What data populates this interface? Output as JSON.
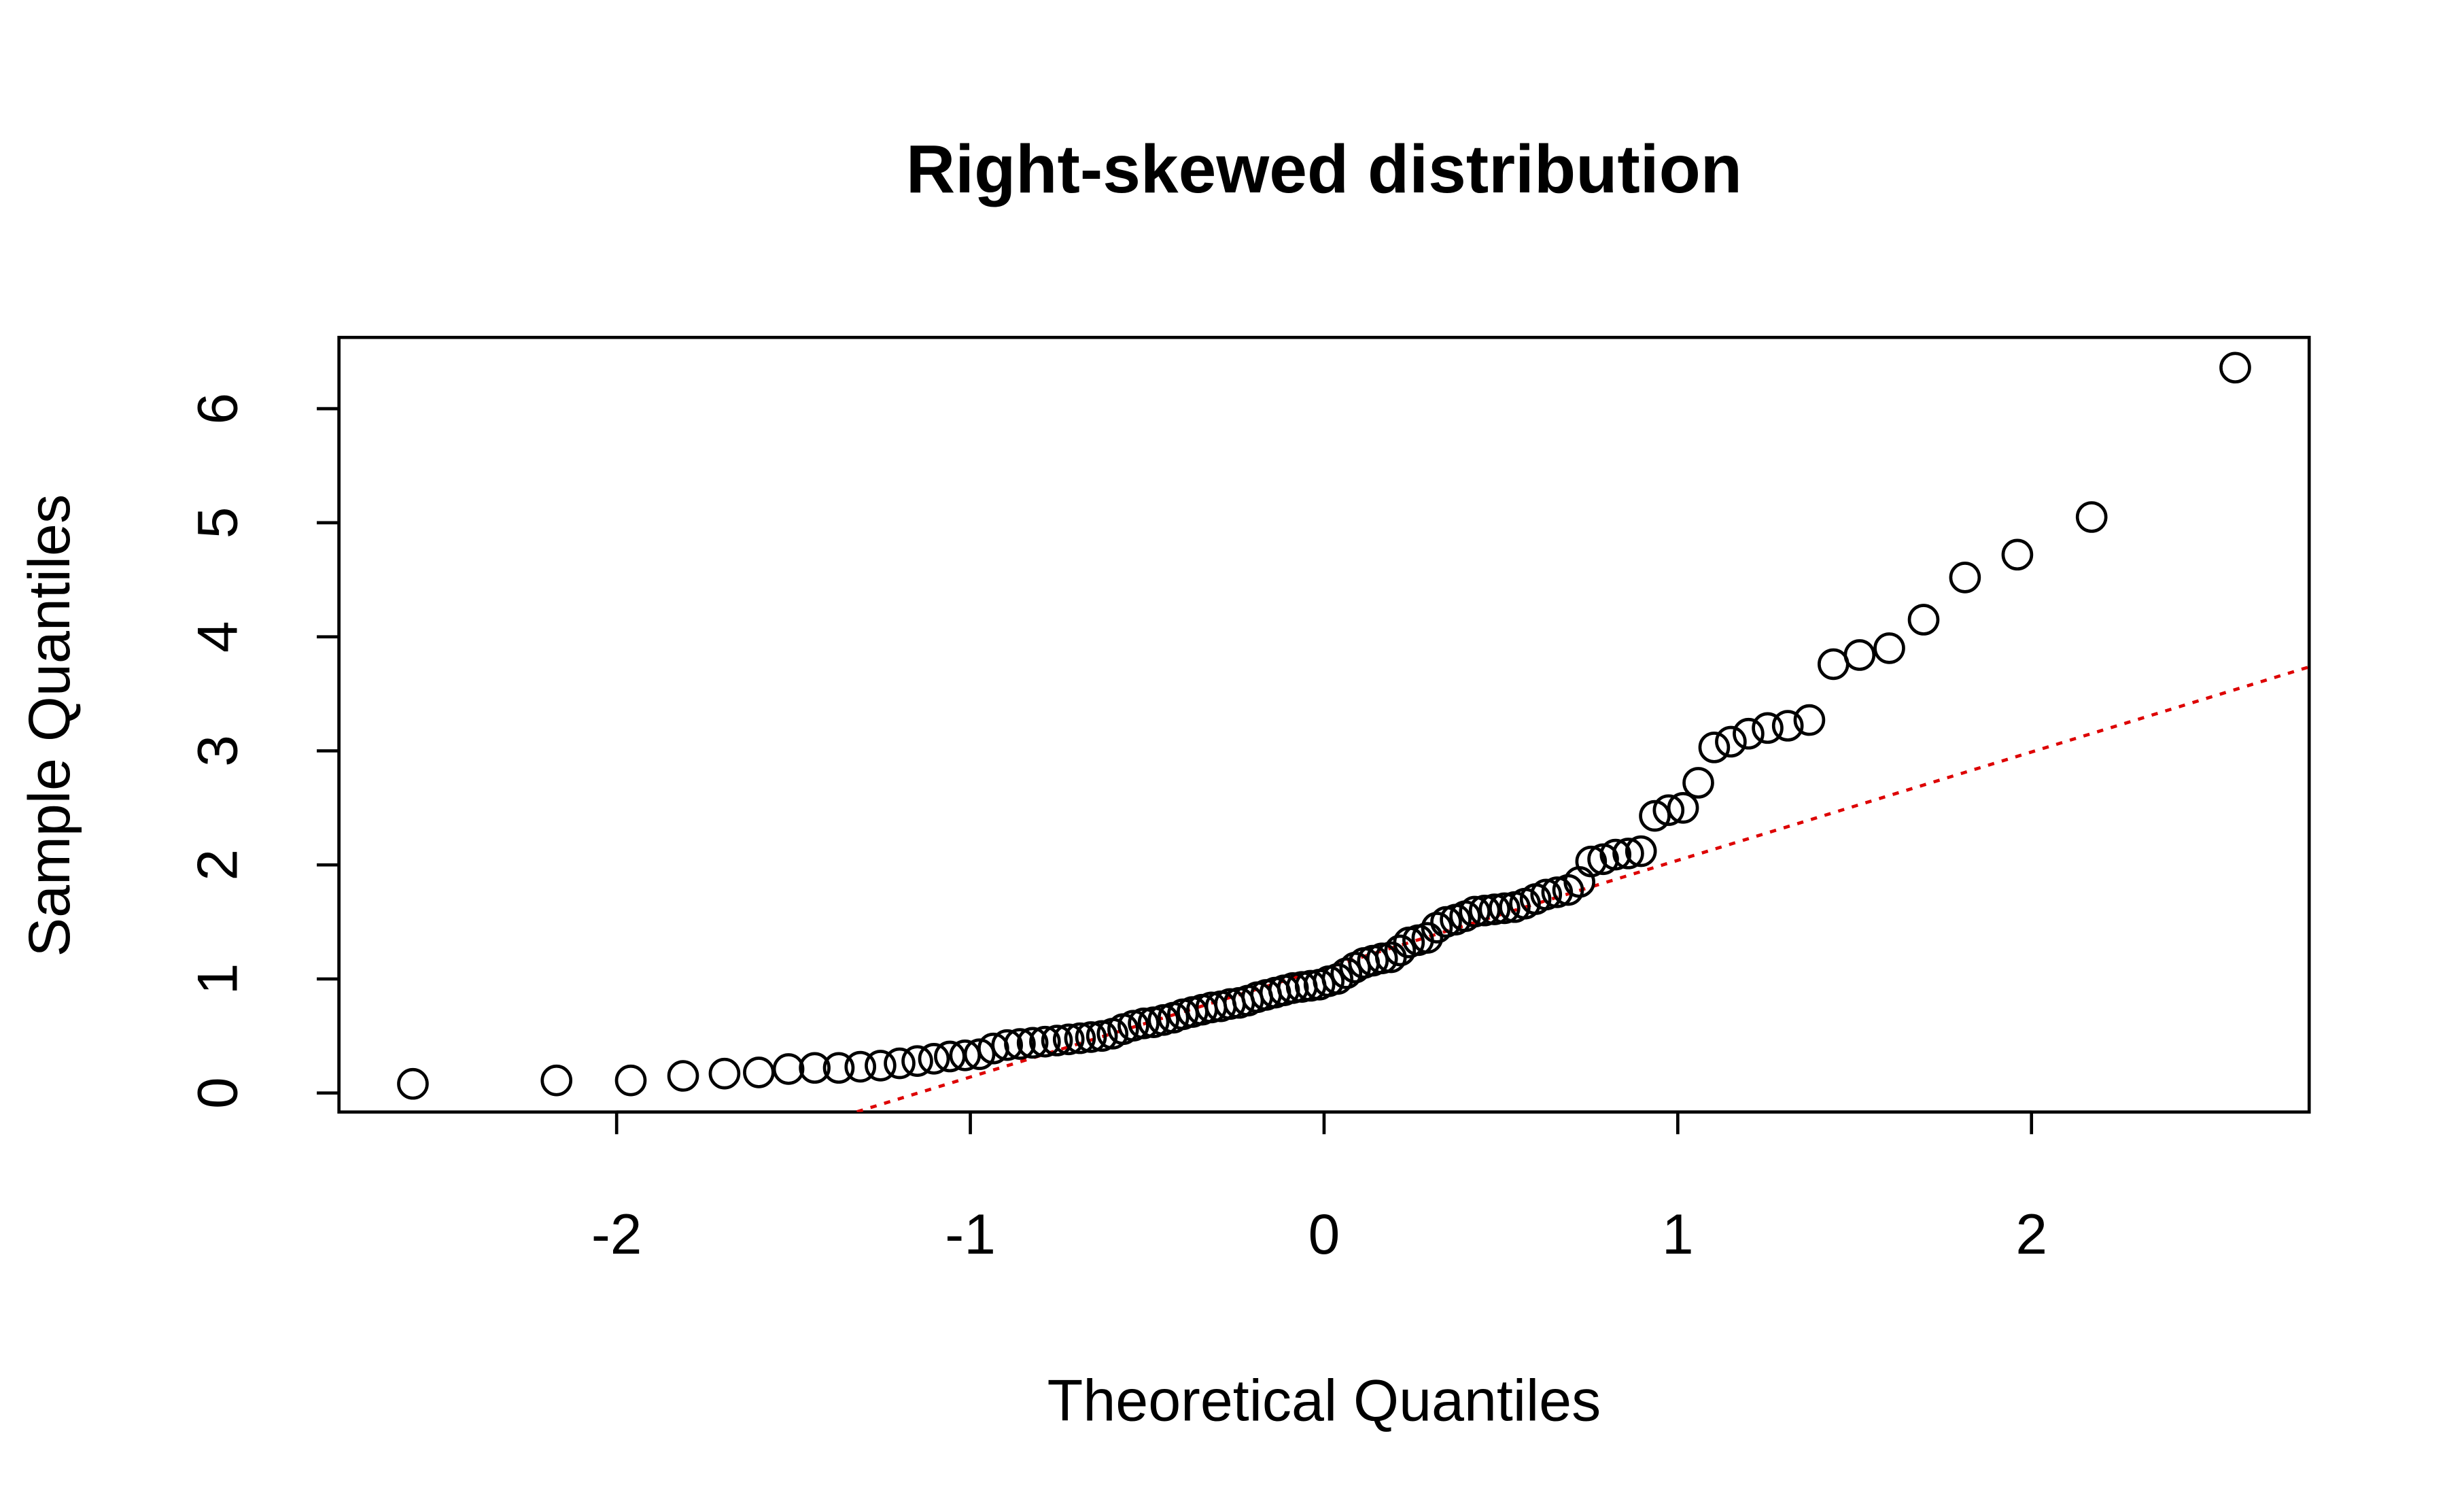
{
  "chart_data": {
    "type": "scatter",
    "title": "Right-skewed distribution",
    "x_label": "Theoretical Quantiles",
    "y_label": "Sample Quantiles",
    "x": [
      -2.576,
      -2.17,
      -1.96,
      -1.812,
      -1.695,
      -1.598,
      -1.514,
      -1.44,
      -1.372,
      -1.311,
      -1.254,
      -1.2,
      -1.15,
      -1.103,
      -1.058,
      -1.015,
      -0.974,
      -0.935,
      -0.896,
      -0.86,
      -0.824,
      -0.789,
      -0.755,
      -0.722,
      -0.69,
      -0.659,
      -0.628,
      -0.598,
      -0.568,
      -0.539,
      -0.51,
      -0.482,
      -0.454,
      -0.426,
      -0.399,
      -0.372,
      -0.345,
      -0.319,
      -0.292,
      -0.266,
      -0.24,
      -0.215,
      -0.189,
      -0.164,
      -0.138,
      -0.113,
      -0.088,
      -0.063,
      -0.038,
      -0.013,
      0.013,
      0.038,
      0.063,
      0.088,
      0.113,
      0.138,
      0.164,
      0.189,
      0.215,
      0.24,
      0.266,
      0.292,
      0.319,
      0.345,
      0.372,
      0.399,
      0.426,
      0.454,
      0.482,
      0.51,
      0.539,
      0.568,
      0.598,
      0.628,
      0.659,
      0.69,
      0.722,
      0.755,
      0.789,
      0.824,
      0.86,
      0.896,
      0.935,
      0.974,
      1.015,
      1.058,
      1.103,
      1.15,
      1.2,
      1.254,
      1.311,
      1.372,
      1.44,
      1.514,
      1.598,
      1.695,
      1.812,
      1.96,
      2.17,
      2.576
    ],
    "values": [
      0.08,
      0.11,
      0.11,
      0.15,
      0.17,
      0.18,
      0.21,
      0.22,
      0.22,
      0.23,
      0.24,
      0.26,
      0.28,
      0.3,
      0.32,
      0.33,
      0.34,
      0.39,
      0.42,
      0.43,
      0.44,
      0.45,
      0.46,
      0.47,
      0.48,
      0.49,
      0.5,
      0.52,
      0.56,
      0.59,
      0.61,
      0.62,
      0.64,
      0.66,
      0.69,
      0.71,
      0.73,
      0.75,
      0.76,
      0.78,
      0.79,
      0.81,
      0.84,
      0.86,
      0.88,
      0.9,
      0.92,
      0.93,
      0.94,
      0.95,
      0.98,
      1.0,
      1.05,
      1.1,
      1.14,
      1.16,
      1.18,
      1.19,
      1.25,
      1.32,
      1.34,
      1.36,
      1.45,
      1.5,
      1.52,
      1.55,
      1.59,
      1.6,
      1.61,
      1.62,
      1.63,
      1.66,
      1.7,
      1.74,
      1.76,
      1.78,
      1.85,
      2.03,
      2.05,
      2.09,
      2.1,
      2.12,
      2.43,
      2.48,
      2.5,
      2.72,
      3.03,
      3.08,
      3.15,
      3.2,
      3.22,
      3.27,
      3.76,
      3.84,
      3.9,
      4.15,
      4.52,
      4.72,
      5.05,
      6.36
    ],
    "color": "#000000",
    "reference_line": {
      "intercept": 1.09,
      "slope": 0.95,
      "color": "#dd0000"
    },
    "xlim": [
      -2.785,
      2.785
    ],
    "ylim": [
      -0.167,
      6.625
    ],
    "xticks": [
      -2,
      -1,
      0,
      1,
      2
    ],
    "yticks": [
      0,
      1,
      2,
      3,
      4,
      5,
      6
    ]
  }
}
